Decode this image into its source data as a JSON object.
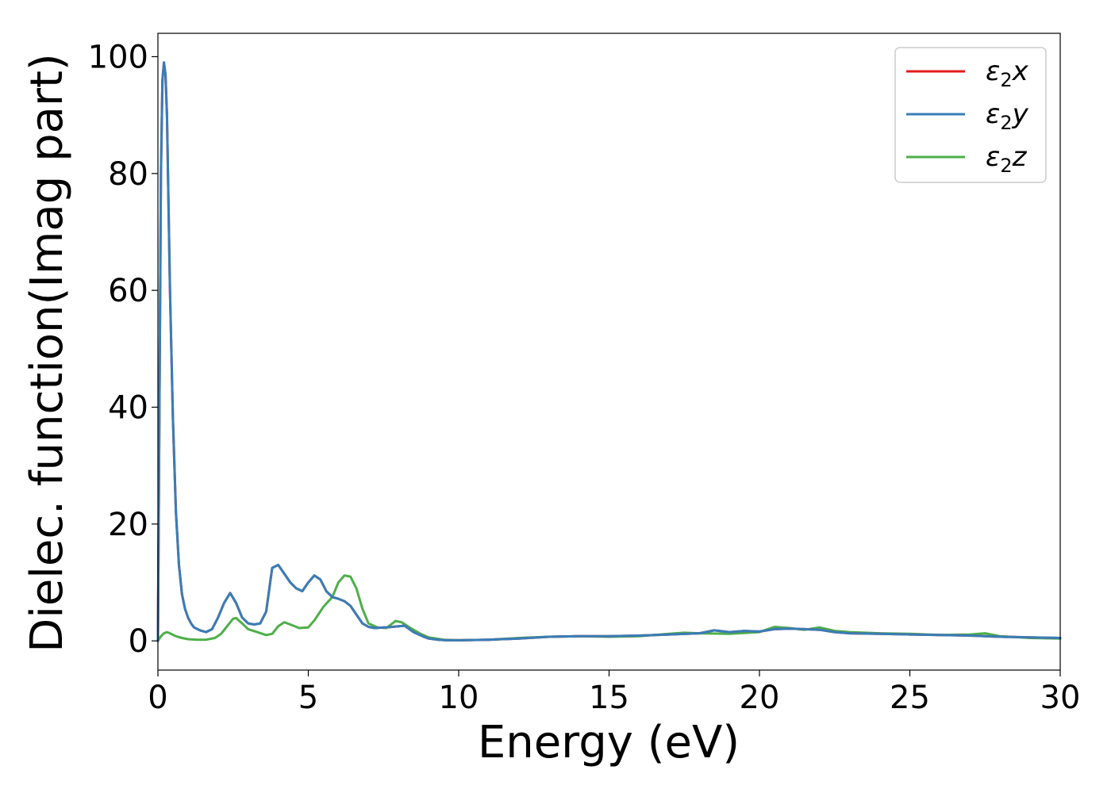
{
  "chart_data": {
    "type": "line",
    "xlabel": "Energy (eV)",
    "ylabel": "Dielec. function(Imag part)",
    "xlim": [
      0,
      30
    ],
    "ylim": [
      -5,
      104
    ],
    "xticks": [
      0,
      5,
      10,
      15,
      20,
      25,
      30
    ],
    "yticks": [
      0,
      20,
      40,
      60,
      80,
      100
    ],
    "grid": false,
    "legend_position": "top-right",
    "series": [
      {
        "name": "ε₂x",
        "legend_main": "ε",
        "legend_sub": "2",
        "legend_var": "x",
        "color": "#e41a1c",
        "x": [
          0,
          0.05,
          0.1,
          0.15,
          0.2,
          0.25,
          0.3,
          0.35,
          0.4,
          0.5,
          0.6,
          0.7,
          0.8,
          0.9,
          1.0,
          1.1,
          1.2,
          1.4,
          1.6,
          1.8,
          2.0,
          2.2,
          2.4,
          2.6,
          2.8,
          3.0,
          3.2,
          3.4,
          3.6,
          3.8,
          4.0,
          4.2,
          4.4,
          4.6,
          4.8,
          5.0,
          5.2,
          5.4,
          5.6,
          5.8,
          6.0,
          6.2,
          6.4,
          6.6,
          6.8,
          7.0,
          7.2,
          7.5,
          7.8,
          8.0,
          8.2,
          8.5,
          8.8,
          9.0,
          9.3,
          9.6,
          10.0,
          11,
          12,
          13,
          14,
          15,
          16,
          17,
          18,
          18.5,
          19,
          19.5,
          20,
          20.5,
          21,
          21.5,
          22,
          22.5,
          23,
          24,
          25,
          26,
          27,
          28,
          29,
          30
        ],
        "y": [
          0,
          40,
          80,
          96,
          99,
          97,
          90,
          75,
          60,
          38,
          22,
          13,
          8,
          5.5,
          4,
          3,
          2.3,
          1.8,
          1.5,
          2.0,
          4.0,
          6.5,
          8.2,
          6.5,
          4.0,
          3.0,
          2.8,
          3.0,
          5.0,
          12.5,
          13.0,
          11.5,
          10.0,
          9.0,
          8.5,
          10.0,
          11.2,
          10.5,
          8.5,
          7.5,
          7.2,
          6.8,
          6.0,
          4.5,
          3.0,
          2.4,
          2.2,
          2.3,
          2.4,
          2.5,
          2.6,
          1.5,
          0.8,
          0.4,
          0.2,
          0.1,
          0.1,
          0.2,
          0.4,
          0.7,
          0.8,
          0.8,
          0.9,
          1.1,
          1.3,
          1.8,
          1.5,
          1.7,
          1.6,
          2.0,
          2.1,
          2.0,
          1.9,
          1.5,
          1.3,
          1.2,
          1.1,
          1.0,
          0.9,
          0.7,
          0.6,
          0.5
        ]
      },
      {
        "name": "ε₂y",
        "legend_main": "ε",
        "legend_sub": "2",
        "legend_var": "y",
        "color": "#377eb8",
        "x": [
          0,
          0.05,
          0.1,
          0.15,
          0.2,
          0.25,
          0.3,
          0.35,
          0.4,
          0.5,
          0.6,
          0.7,
          0.8,
          0.9,
          1.0,
          1.1,
          1.2,
          1.4,
          1.6,
          1.8,
          2.0,
          2.2,
          2.4,
          2.6,
          2.8,
          3.0,
          3.2,
          3.4,
          3.6,
          3.8,
          4.0,
          4.2,
          4.4,
          4.6,
          4.8,
          5.0,
          5.2,
          5.4,
          5.6,
          5.8,
          6.0,
          6.2,
          6.4,
          6.6,
          6.8,
          7.0,
          7.2,
          7.5,
          7.8,
          8.0,
          8.2,
          8.5,
          8.8,
          9.0,
          9.3,
          9.6,
          10.0,
          11,
          12,
          13,
          14,
          15,
          16,
          17,
          18,
          18.5,
          19,
          19.5,
          20,
          20.5,
          21,
          21.5,
          22,
          22.5,
          23,
          24,
          25,
          26,
          27,
          28,
          29,
          30
        ],
        "y": [
          0,
          40,
          80,
          96,
          99,
          97,
          90,
          75,
          60,
          38,
          22,
          13,
          8,
          5.5,
          4,
          3,
          2.3,
          1.8,
          1.5,
          2.0,
          4.0,
          6.5,
          8.2,
          6.5,
          4.0,
          3.0,
          2.8,
          3.0,
          5.0,
          12.5,
          13.0,
          11.5,
          10.0,
          9.0,
          8.5,
          10.0,
          11.2,
          10.5,
          8.5,
          7.5,
          7.2,
          6.8,
          6.0,
          4.5,
          3.0,
          2.4,
          2.2,
          2.3,
          2.4,
          2.5,
          2.6,
          1.5,
          0.8,
          0.4,
          0.2,
          0.1,
          0.1,
          0.2,
          0.4,
          0.7,
          0.8,
          0.8,
          0.9,
          1.1,
          1.3,
          1.8,
          1.5,
          1.7,
          1.6,
          2.0,
          2.1,
          2.0,
          1.9,
          1.5,
          1.3,
          1.2,
          1.1,
          1.0,
          0.9,
          0.7,
          0.6,
          0.5
        ]
      },
      {
        "name": "ε₂z",
        "legend_main": "ε",
        "legend_sub": "2",
        "legend_var": "z",
        "color": "#4daf4a",
        "x": [
          0,
          0.1,
          0.2,
          0.3,
          0.4,
          0.6,
          0.8,
          1.0,
          1.3,
          1.6,
          1.9,
          2.1,
          2.3,
          2.5,
          2.6,
          2.8,
          3.0,
          3.3,
          3.6,
          3.8,
          4.0,
          4.2,
          4.4,
          4.7,
          5.0,
          5.2,
          5.5,
          5.8,
          6.0,
          6.2,
          6.4,
          6.6,
          6.8,
          7.0,
          7.3,
          7.6,
          7.9,
          8.1,
          8.4,
          8.7,
          9.0,
          9.5,
          10,
          11,
          12,
          13,
          14,
          15,
          16,
          17,
          17.5,
          18,
          19,
          20,
          20.5,
          21,
          21.5,
          22,
          22.5,
          23,
          24,
          25,
          26,
          27,
          27.5,
          28,
          29,
          30
        ],
        "y": [
          0,
          0.8,
          1.3,
          1.5,
          1.3,
          0.8,
          0.5,
          0.3,
          0.2,
          0.2,
          0.5,
          1.2,
          2.5,
          3.8,
          3.9,
          3.0,
          2.0,
          1.5,
          1.0,
          1.2,
          2.5,
          3.2,
          2.8,
          2.2,
          2.3,
          3.5,
          5.8,
          7.5,
          10.0,
          11.2,
          11.0,
          9.0,
          5.5,
          3.0,
          2.3,
          2.2,
          3.4,
          3.2,
          2.2,
          1.3,
          0.6,
          0.2,
          0.1,
          0.2,
          0.5,
          0.7,
          0.8,
          0.7,
          0.8,
          1.2,
          1.4,
          1.3,
          1.2,
          1.5,
          2.4,
          2.2,
          1.9,
          2.3,
          1.7,
          1.5,
          1.3,
          1.2,
          1.0,
          1.1,
          1.3,
          0.8,
          0.5,
          0.4
        ]
      }
    ]
  }
}
